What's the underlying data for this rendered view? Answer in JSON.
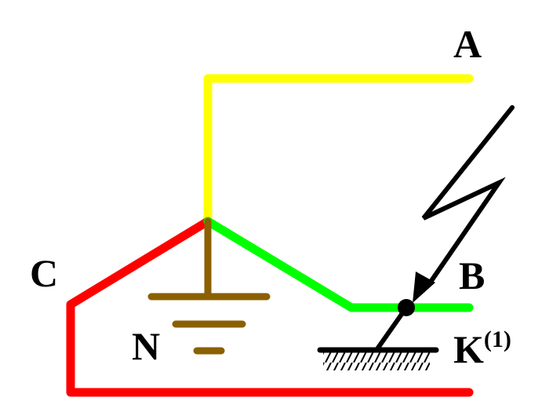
{
  "diagram": {
    "phase_a_label": "A",
    "phase_b_label": "B",
    "phase_c_label": "C",
    "neutral_label": "N",
    "fault_label": "K",
    "fault_superscript": "(1)"
  },
  "colors": {
    "phase_a": "#ffff00",
    "phase_b": "#00ff00",
    "phase_c": "#ff0000",
    "neutral": "#8b6000",
    "fault": "#000000"
  }
}
